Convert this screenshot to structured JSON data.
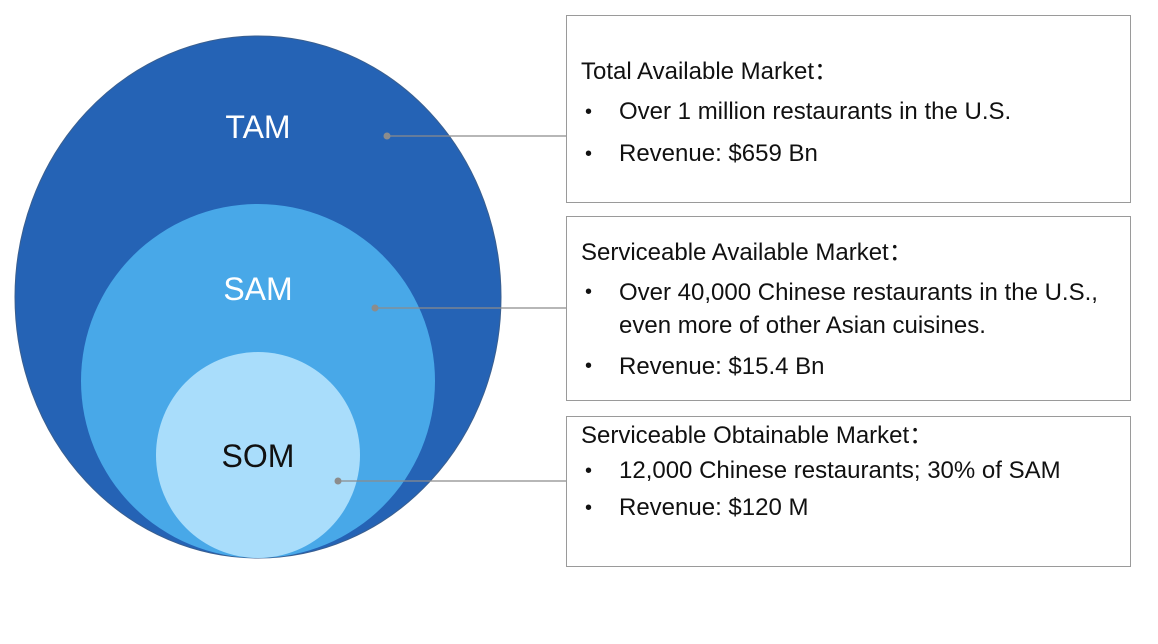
{
  "circles": {
    "tam": {
      "label": "TAM",
      "fill": "#2563b5",
      "label_color": "#ffffff"
    },
    "sam": {
      "label": "SAM",
      "fill": "#48a8e8",
      "label_color": "#ffffff"
    },
    "som": {
      "label": "SOM",
      "fill": "#a9ddfb",
      "label_color": "#111111"
    }
  },
  "boxes": {
    "tam": {
      "title": "Total Available Market：",
      "bullets": [
        "Over 1 million restaurants in the U.S.",
        "Revenue: $659 Bn"
      ]
    },
    "sam": {
      "title": "Serviceable Available Market：",
      "bullets": [
        "Over 40,000 Chinese restaurants in the U.S., even more of other Asian cuisines.",
        "Revenue: $15.4 Bn"
      ]
    },
    "som": {
      "title": "Serviceable Obtainable Market：",
      "bullets": [
        "12,000 Chinese restaurants; 30% of SAM",
        "Revenue: $120 M"
      ]
    }
  },
  "bullet_glyph": "•",
  "connector_color": "#8c8c8c"
}
